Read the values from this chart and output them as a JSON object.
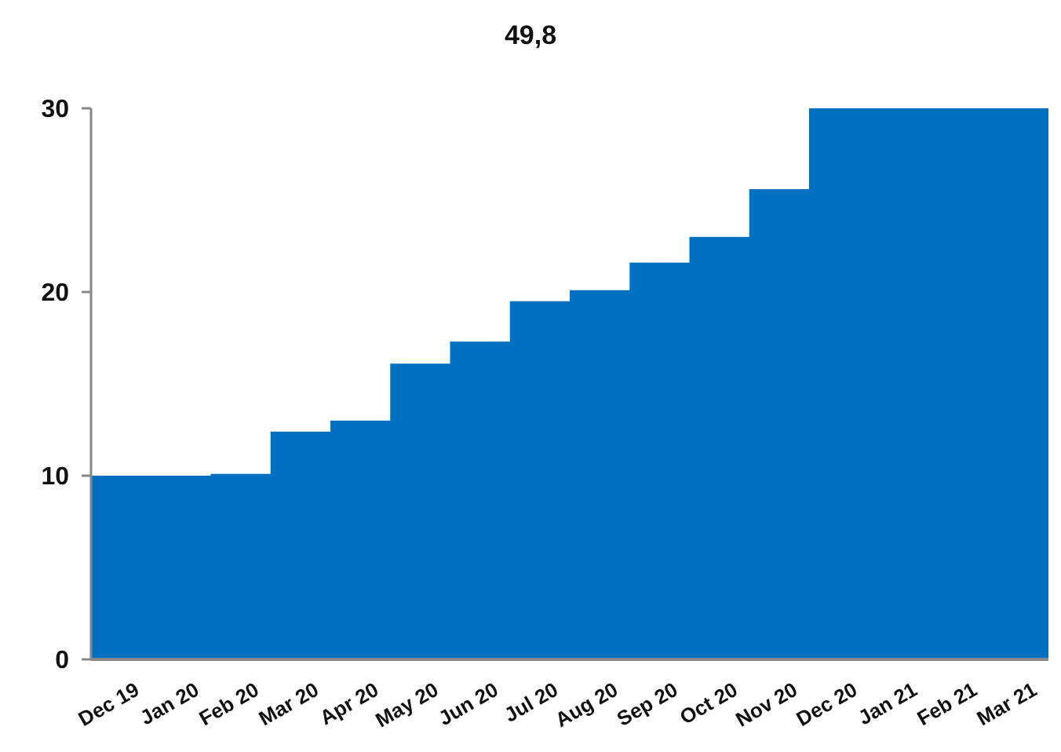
{
  "chart_data": {
    "type": "bar",
    "categories": [
      "Dec 19",
      "Jan 20",
      "Feb 20",
      "Mar 20",
      "Apr 20",
      "May 20",
      "Jun 20",
      "Jul 20",
      "Aug 20",
      "Sep 20",
      "Oct 20",
      "Nov 20",
      "Dec 20",
      "Jan 21",
      "Feb 21",
      "Mar 21"
    ],
    "values": [
      10,
      10,
      10.1,
      12.4,
      13,
      16.1,
      17.3,
      19.5,
      20.1,
      21.6,
      23,
      25.6,
      30,
      30,
      30,
      30
    ],
    "annotations": [
      "49,8"
    ],
    "color": "#0070c0",
    "ylim": [
      0,
      30
    ],
    "yticks": [
      0,
      10,
      20,
      30
    ],
    "grid": false
  }
}
